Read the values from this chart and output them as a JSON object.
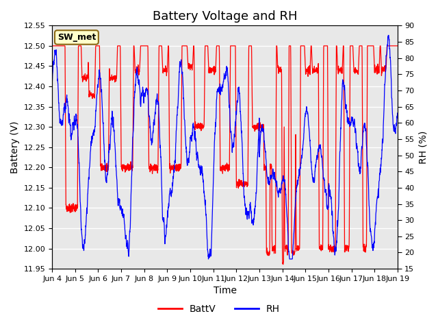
{
  "title": "Battery Voltage and RH",
  "xlabel": "Time",
  "ylabel_left": "Battery (V)",
  "ylabel_right": "RH (%)",
  "legend_label": "SW_met",
  "series_labels": [
    "BattV",
    "RH"
  ],
  "series_colors": [
    "red",
    "blue"
  ],
  "x_tick_labels": [
    "Jun 4",
    "Jun 5",
    "Jun 6",
    "Jun 7",
    "Jun 8",
    "Jun 9",
    "Jun 10",
    "Jun 11",
    "Jun 12",
    "Jun 13",
    "Jun 14",
    "Jun 15",
    "Jun 16",
    "Jun 17",
    "Jun 18",
    "Jun 19"
  ],
  "ylim_left": [
    11.95,
    12.55
  ],
  "ylim_right": [
    15,
    90
  ],
  "yticks_left": [
    11.95,
    12.0,
    12.05,
    12.1,
    12.15,
    12.2,
    12.25,
    12.3,
    12.35,
    12.4,
    12.45,
    12.5,
    12.55
  ],
  "yticks_right": [
    15,
    20,
    25,
    30,
    35,
    40,
    45,
    50,
    55,
    60,
    65,
    70,
    75,
    80,
    85,
    90
  ],
  "plot_bg_color": "#e8e8e8",
  "grid_color": "white",
  "title_fontsize": 13,
  "axis_fontsize": 10,
  "tick_fontsize": 8,
  "legend_box_color": "#ffffcc",
  "legend_box_edge": "#8B6914"
}
